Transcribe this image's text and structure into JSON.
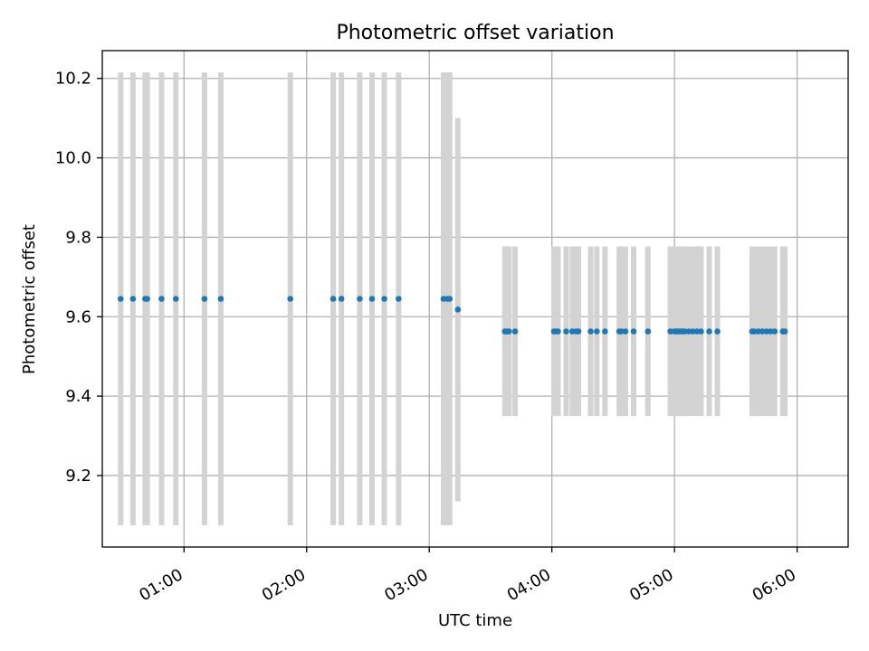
{
  "chart_data": {
    "type": "scatter",
    "title": "Photometric offset variation",
    "xlabel": "UTC time",
    "ylabel": "Photometric offset",
    "x_unit": "UTC time (HH:MM)",
    "xlim": [
      "00:20",
      "06:25"
    ],
    "ylim": [
      9.02,
      10.27
    ],
    "x_ticks": [
      "01:00",
      "02:00",
      "03:00",
      "04:00",
      "05:00",
      "06:00"
    ],
    "y_ticks": [
      "9.2",
      "9.4",
      "9.6",
      "9.8",
      "10.0",
      "10.2"
    ],
    "grid": true,
    "colors": {
      "point": "#1f77b4",
      "errorbar": "#d3d3d3",
      "grid": "#b0b0b0"
    },
    "series": [
      {
        "x": [
          "00:29",
          "00:35",
          "00:41",
          "00:42",
          "00:49",
          "00:56",
          "01:10",
          "01:18",
          "01:52",
          "02:13",
          "02:17",
          "02:26",
          "02:32",
          "02:38",
          "02:45",
          "03:07",
          "03:09",
          "03:10",
          "03:14",
          "03:37",
          "03:38",
          "03:39",
          "03:42",
          "04:01",
          "04:02",
          "04:03",
          "04:07",
          "04:10",
          "04:12",
          "04:13",
          "04:19",
          "04:22",
          "04:26",
          "04:33",
          "04:34",
          "04:36",
          "04:40",
          "04:47",
          "04:58",
          "05:00",
          "05:01",
          "05:02",
          "05:03",
          "05:04",
          "05:05",
          "05:07",
          "05:09",
          "05:11",
          "05:13",
          "05:17",
          "05:21",
          "05:38",
          "05:39",
          "05:41",
          "05:43",
          "05:45",
          "05:47",
          "05:49",
          "05:53",
          "05:54"
        ],
        "y": [
          9.645,
          9.645,
          9.645,
          9.645,
          9.645,
          9.645,
          9.645,
          9.645,
          9.645,
          9.645,
          9.645,
          9.645,
          9.645,
          9.645,
          9.645,
          9.645,
          9.645,
          9.645,
          9.618,
          9.563,
          9.563,
          9.563,
          9.563,
          9.563,
          9.563,
          9.563,
          9.563,
          9.563,
          9.563,
          9.563,
          9.563,
          9.563,
          9.563,
          9.563,
          9.563,
          9.563,
          9.563,
          9.563,
          9.563,
          9.563,
          9.563,
          9.563,
          9.563,
          9.563,
          9.563,
          9.563,
          9.563,
          9.563,
          9.563,
          9.563,
          9.563,
          9.563,
          9.563,
          9.563,
          9.563,
          9.563,
          9.563,
          9.563,
          9.563,
          9.563
        ],
        "y_low": [
          9.075,
          9.075,
          9.075,
          9.075,
          9.075,
          9.075,
          9.075,
          9.075,
          9.075,
          9.075,
          9.075,
          9.075,
          9.075,
          9.075,
          9.075,
          9.075,
          9.075,
          9.075,
          9.135,
          9.35,
          9.35,
          9.35,
          9.35,
          9.35,
          9.35,
          9.35,
          9.35,
          9.35,
          9.35,
          9.35,
          9.35,
          9.35,
          9.35,
          9.35,
          9.35,
          9.35,
          9.35,
          9.35,
          9.35,
          9.35,
          9.35,
          9.35,
          9.35,
          9.35,
          9.35,
          9.35,
          9.35,
          9.35,
          9.35,
          9.35,
          9.35,
          9.35,
          9.35,
          9.35,
          9.35,
          9.35,
          9.35,
          9.35,
          9.35,
          9.35
        ],
        "y_high": [
          10.215,
          10.215,
          10.215,
          10.215,
          10.215,
          10.215,
          10.215,
          10.215,
          10.215,
          10.215,
          10.215,
          10.215,
          10.215,
          10.215,
          10.215,
          10.215,
          10.215,
          10.215,
          10.1,
          9.777,
          9.777,
          9.777,
          9.777,
          9.777,
          9.777,
          9.777,
          9.777,
          9.777,
          9.777,
          9.777,
          9.777,
          9.777,
          9.777,
          9.777,
          9.777,
          9.777,
          9.777,
          9.777,
          9.777,
          9.777,
          9.777,
          9.777,
          9.777,
          9.777,
          9.777,
          9.777,
          9.777,
          9.777,
          9.777,
          9.777,
          9.777,
          9.777,
          9.777,
          9.777,
          9.777,
          9.777,
          9.777,
          9.777,
          9.777,
          9.777
        ]
      }
    ]
  }
}
